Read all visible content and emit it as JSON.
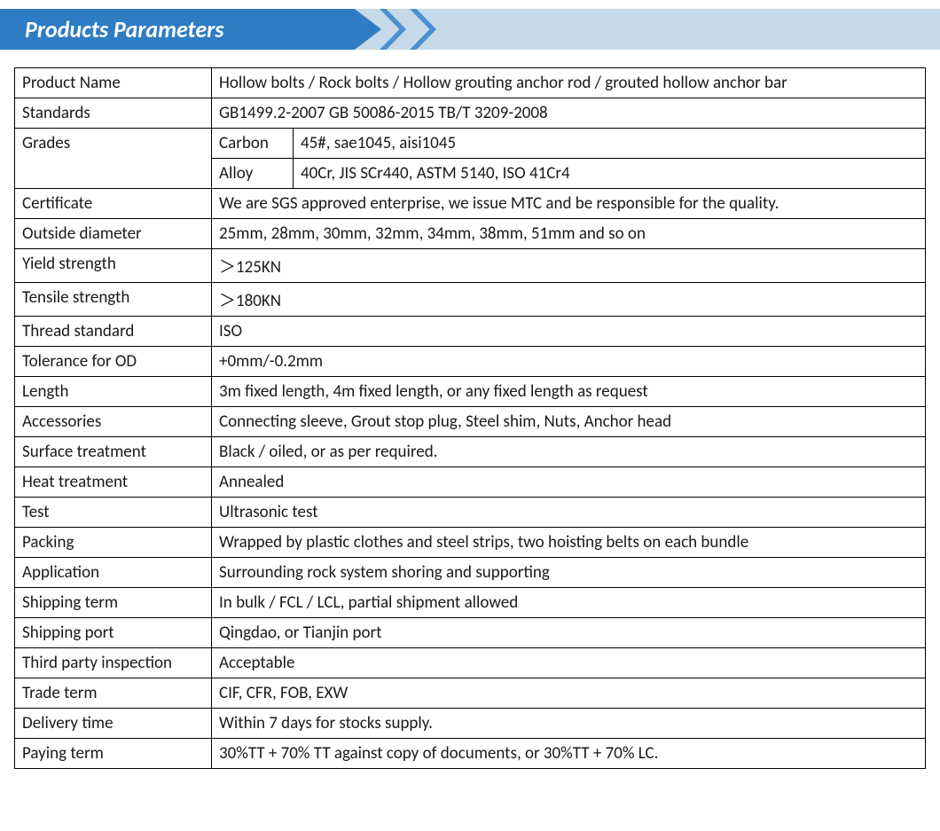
{
  "header": {
    "title": "Products Parameters",
    "title_bg": "#2e7cc3",
    "title_color": "#ffffff",
    "chevron_color": "#4a8fd0",
    "bar_bg": "#c5d9e8"
  },
  "table": {
    "border_color": "#000000",
    "text_color": "#1a1a1a",
    "cell_bg": "#ffffff",
    "font_size": 19,
    "label_col_width": 222,
    "sub_col_width": 92,
    "rows": [
      {
        "label": "Product Name",
        "value": "Hollow bolts / Rock bolts / Hollow grouting anchor rod / grouted hollow anchor bar"
      },
      {
        "label": "Standards",
        "value": "GB1499.2-2007 GB 50086-2015 TB/T 3209-2008"
      },
      {
        "label": "Grades",
        "subrows": [
          {
            "sub": "Carbon",
            "value": "45#, sae1045, aisi1045"
          },
          {
            "sub": "Alloy",
            "value": "40Cr, JIS SCr440, ASTM 5140, ISO 41Cr4"
          }
        ]
      },
      {
        "label": "Certificate",
        "value": "We are SGS approved enterprise, we issue MTC and be responsible for the quality."
      },
      {
        "label": "Outside diameter",
        "value": "25mm, 28mm, 30mm, 32mm, 34mm, 38mm, 51mm and so on"
      },
      {
        "label": "Yield strength",
        "value": "＞125KN"
      },
      {
        "label": "Tensile strength",
        "value": "＞180KN"
      },
      {
        "label": "Thread standard",
        "value": "ISO"
      },
      {
        "label": "Tolerance for OD",
        "value": "+0mm/-0.2mm"
      },
      {
        "label": "Length",
        "value": "3m fixed length, 4m fixed length, or any fixed length as request"
      },
      {
        "label": "Accessories",
        "value": "Connecting sleeve, Grout stop plug, Steel shim, Nuts, Anchor head"
      },
      {
        "label": "Surface treatment",
        "value": "Black / oiled, or as per required."
      },
      {
        "label": "Heat treatment",
        "value": "Annealed"
      },
      {
        "label": "Test",
        "value": "Ultrasonic test"
      },
      {
        "label": "Packing",
        "value": "Wrapped by plastic clothes and steel strips, two hoisting belts on each bundle"
      },
      {
        "label": "Application",
        "value": "Surrounding rock system shoring and supporting"
      },
      {
        "label": "Shipping term",
        "value": "In bulk / FCL / LCL, partial shipment allowed"
      },
      {
        "label": "Shipping port",
        "value": "Qingdao, or Tianjin port"
      },
      {
        "label": "Third party inspection",
        "value": "Acceptable"
      },
      {
        "label": "Trade term",
        "value": "CIF, CFR, FOB, EXW"
      },
      {
        "label": "Delivery time",
        "value": "Within 7 days for stocks supply."
      },
      {
        "label": "Paying term",
        "value": "30%TT + 70% TT against copy of documents, or 30%TT + 70% LC."
      }
    ]
  }
}
